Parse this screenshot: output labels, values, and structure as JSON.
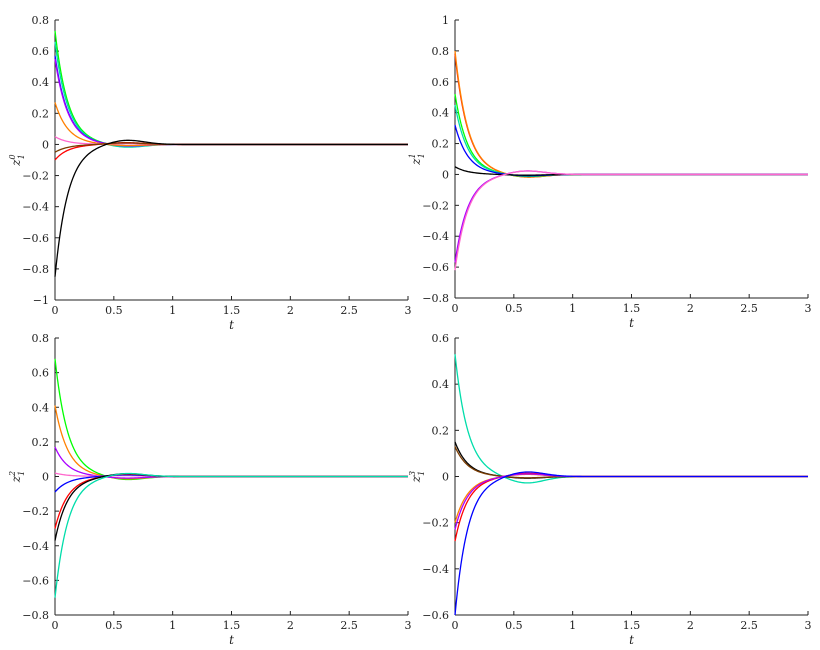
{
  "chart_data": [
    {
      "type": "line",
      "title": "",
      "xlabel": "t",
      "ylabel": "z_1^0",
      "xlim": [
        0,
        3
      ],
      "ylim": [
        -1,
        0.8
      ],
      "xticks": [
        0,
        0.5,
        1,
        1.5,
        2,
        2.5,
        3
      ],
      "yticks": [
        -1,
        -0.8,
        -0.6,
        -0.4,
        -0.2,
        0,
        0.2,
        0.4,
        0.6,
        0.8
      ],
      "xtick_labels": [
        "0",
        "0.5",
        "1",
        "1.5",
        "2",
        "2.5",
        "3"
      ],
      "ytick_labels": [
        "−1",
        "−0.8",
        "−0.6",
        "−0.4",
        "−0.2",
        "0",
        "0.2",
        "0.4",
        "0.6",
        "0.8"
      ],
      "series": [
        {
          "color": "#00ff00",
          "y0": 0.73,
          "osc": -0.015
        },
        {
          "color": "#00ddaa",
          "y0": 0.66,
          "osc": -0.02
        },
        {
          "color": "#0000ff",
          "y0": 0.57,
          "osc": -0.01
        },
        {
          "color": "#aa00ff",
          "y0": 0.55,
          "osc": -0.012
        },
        {
          "color": "#ff8000",
          "y0": 0.27,
          "osc": -0.008
        },
        {
          "color": "#ff66cc",
          "y0": 0.05,
          "osc": 0.005
        },
        {
          "color": "#ff0000",
          "y0": -0.1,
          "osc": 0.012
        },
        {
          "color": "#7a3b00",
          "y0": -0.05,
          "osc": 0.01
        },
        {
          "color": "#000000",
          "y0": -0.85,
          "osc": 0.03
        }
      ]
    },
    {
      "type": "line",
      "title": "",
      "xlabel": "t",
      "ylabel": "z_1^1",
      "xlim": [
        0,
        3
      ],
      "ylim": [
        -0.8,
        1
      ],
      "xticks": [
        0,
        0.5,
        1,
        1.5,
        2,
        2.5,
        3
      ],
      "yticks": [
        -0.8,
        -0.6,
        -0.4,
        -0.2,
        0,
        0.2,
        0.4,
        0.6,
        0.8,
        1
      ],
      "xtick_labels": [
        "0",
        "0.5",
        "1",
        "1.5",
        "2",
        "2.5",
        "3"
      ],
      "ytick_labels": [
        "−0.8",
        "−0.6",
        "−0.4",
        "−0.2",
        "0",
        "0.2",
        "0.4",
        "0.6",
        "0.8",
        "1"
      ],
      "series": [
        {
          "color": "#ff0000",
          "y0": 0.78,
          "osc": -0.02
        },
        {
          "color": "#ff8000",
          "y0": 0.8,
          "osc": -0.02
        },
        {
          "color": "#00ff00",
          "y0": 0.52,
          "osc": -0.015
        },
        {
          "color": "#00ddaa",
          "y0": 0.45,
          "osc": -0.012
        },
        {
          "color": "#0000ff",
          "y0": 0.32,
          "osc": -0.01
        },
        {
          "color": "#000000",
          "y0": 0.05,
          "osc": -0.005
        },
        {
          "color": "#aa00ff",
          "y0": -0.57,
          "osc": 0.025
        },
        {
          "color": "#ff66cc",
          "y0": -0.62,
          "osc": 0.025
        }
      ]
    },
    {
      "type": "line",
      "title": "",
      "xlabel": "t",
      "ylabel": "z_1^2",
      "xlim": [
        0,
        3
      ],
      "ylim": [
        -0.8,
        0.8
      ],
      "xticks": [
        0,
        0.5,
        1,
        1.5,
        2,
        2.5,
        3
      ],
      "yticks": [
        -0.8,
        -0.6,
        -0.4,
        -0.2,
        0,
        0.2,
        0.4,
        0.6,
        0.8
      ],
      "xtick_labels": [
        "0",
        "0.5",
        "1",
        "1.5",
        "2",
        "2.5",
        "3"
      ],
      "ytick_labels": [
        "−0.8",
        "−0.6",
        "−0.4",
        "−0.2",
        "0",
        "0.2",
        "0.4",
        "0.6",
        "0.8"
      ],
      "series": [
        {
          "color": "#00ff00",
          "y0": 0.68,
          "osc": -0.02
        },
        {
          "color": "#ff8000",
          "y0": 0.41,
          "osc": -0.015
        },
        {
          "color": "#aa00ff",
          "y0": 0.17,
          "osc": -0.01
        },
        {
          "color": "#ff66cc",
          "y0": 0.02,
          "osc": 0.005
        },
        {
          "color": "#0000ff",
          "y0": -0.09,
          "osc": 0.01
        },
        {
          "color": "#ff0000",
          "y0": -0.3,
          "osc": 0.015
        },
        {
          "color": "#000000",
          "y0": -0.37,
          "osc": 0.018
        },
        {
          "color": "#00ddaa",
          "y0": -0.7,
          "osc": 0.02
        }
      ]
    },
    {
      "type": "line",
      "title": "",
      "xlabel": "t",
      "ylabel": "z_1^3",
      "xlim": [
        0,
        3
      ],
      "ylim": [
        -0.6,
        0.6
      ],
      "xticks": [
        0,
        0.5,
        1,
        1.5,
        2,
        2.5,
        3
      ],
      "yticks": [
        -0.6,
        -0.4,
        -0.2,
        0,
        0.2,
        0.4,
        0.6
      ],
      "xtick_labels": [
        "0",
        "0.5",
        "1",
        "1.5",
        "2",
        "2.5",
        "3"
      ],
      "ytick_labels": [
        "−0.6",
        "−0.4",
        "−0.2",
        "0",
        "0.2",
        "0.4",
        "0.6"
      ],
      "series": [
        {
          "color": "#00ddaa",
          "y0": 0.53,
          "osc": -0.03
        },
        {
          "color": "#000000",
          "y0": 0.15,
          "osc": -0.008
        },
        {
          "color": "#7a3b00",
          "y0": 0.13,
          "osc": -0.006
        },
        {
          "color": "#ff8000",
          "y0": -0.2,
          "osc": 0.01
        },
        {
          "color": "#ff0000",
          "y0": -0.28,
          "osc": 0.015
        },
        {
          "color": "#aa00ff",
          "y0": -0.23,
          "osc": 0.012
        },
        {
          "color": "#0000ff",
          "y0": -0.6,
          "osc": 0.022
        }
      ]
    }
  ]
}
